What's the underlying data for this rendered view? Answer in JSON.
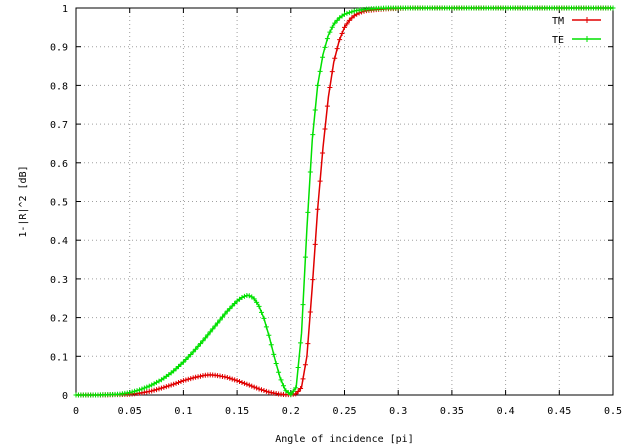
{
  "chart_data": {
    "type": "line",
    "title": "",
    "xlabel": "Angle of incidence [pi]",
    "ylabel": "1-|R|^2 [dB]",
    "xlim": [
      0,
      0.5
    ],
    "ylim": [
      0,
      1
    ],
    "x_ticks": [
      "0",
      "0.05",
      "0.1",
      "0.15",
      "0.2",
      "0.25",
      "0.3",
      "0.35",
      "0.4",
      "0.45",
      "0.5"
    ],
    "y_ticks": [
      "0",
      "0.1",
      "0.2",
      "0.3",
      "0.4",
      "0.5",
      "0.6",
      "0.7",
      "0.8",
      "0.9",
      "1"
    ],
    "grid": true,
    "legend_position": "top-right",
    "series": [
      {
        "name": "TM",
        "color": "#e00000",
        "x": [
          0,
          0.02,
          0.04,
          0.05,
          0.06,
          0.07,
          0.08,
          0.09,
          0.1,
          0.11,
          0.12,
          0.125,
          0.13,
          0.14,
          0.15,
          0.16,
          0.17,
          0.18,
          0.19,
          0.195,
          0.2,
          0.205,
          0.21,
          0.215,
          0.22,
          0.225,
          0.23,
          0.235,
          0.24,
          0.245,
          0.25,
          0.255,
          0.26,
          0.265,
          0.27,
          0.28,
          0.29,
          0.3,
          0.31,
          0.35,
          0.4,
          0.45,
          0.5
        ],
        "y": [
          0,
          0,
          0.001,
          0.002,
          0.005,
          0.01,
          0.018,
          0.027,
          0.037,
          0.045,
          0.051,
          0.052,
          0.051,
          0.046,
          0.037,
          0.027,
          0.016,
          0.007,
          0.002,
          0.001,
          0.001,
          0.003,
          0.02,
          0.1,
          0.28,
          0.48,
          0.64,
          0.77,
          0.86,
          0.915,
          0.95,
          0.97,
          0.982,
          0.989,
          0.993,
          0.996,
          0.998,
          0.999,
          1,
          1,
          1,
          1,
          1
        ]
      },
      {
        "name": "TE",
        "color": "#00e000",
        "x": [
          0,
          0.02,
          0.04,
          0.05,
          0.06,
          0.07,
          0.08,
          0.09,
          0.1,
          0.11,
          0.12,
          0.13,
          0.14,
          0.15,
          0.155,
          0.16,
          0.165,
          0.17,
          0.175,
          0.18,
          0.185,
          0.19,
          0.195,
          0.2,
          0.205,
          0.21,
          0.215,
          0.22,
          0.225,
          0.23,
          0.235,
          0.24,
          0.245,
          0.25,
          0.26,
          0.27,
          0.28,
          0.29,
          0.3,
          0.35,
          0.4,
          0.45,
          0.5
        ],
        "y": [
          0,
          0,
          0.002,
          0.006,
          0.014,
          0.025,
          0.04,
          0.06,
          0.085,
          0.114,
          0.146,
          0.18,
          0.214,
          0.243,
          0.253,
          0.258,
          0.252,
          0.232,
          0.198,
          0.15,
          0.095,
          0.045,
          0.012,
          0.001,
          0.02,
          0.16,
          0.43,
          0.66,
          0.8,
          0.88,
          0.93,
          0.958,
          0.974,
          0.984,
          0.993,
          0.997,
          0.999,
          1,
          1,
          1,
          1,
          1,
          1
        ]
      }
    ]
  }
}
